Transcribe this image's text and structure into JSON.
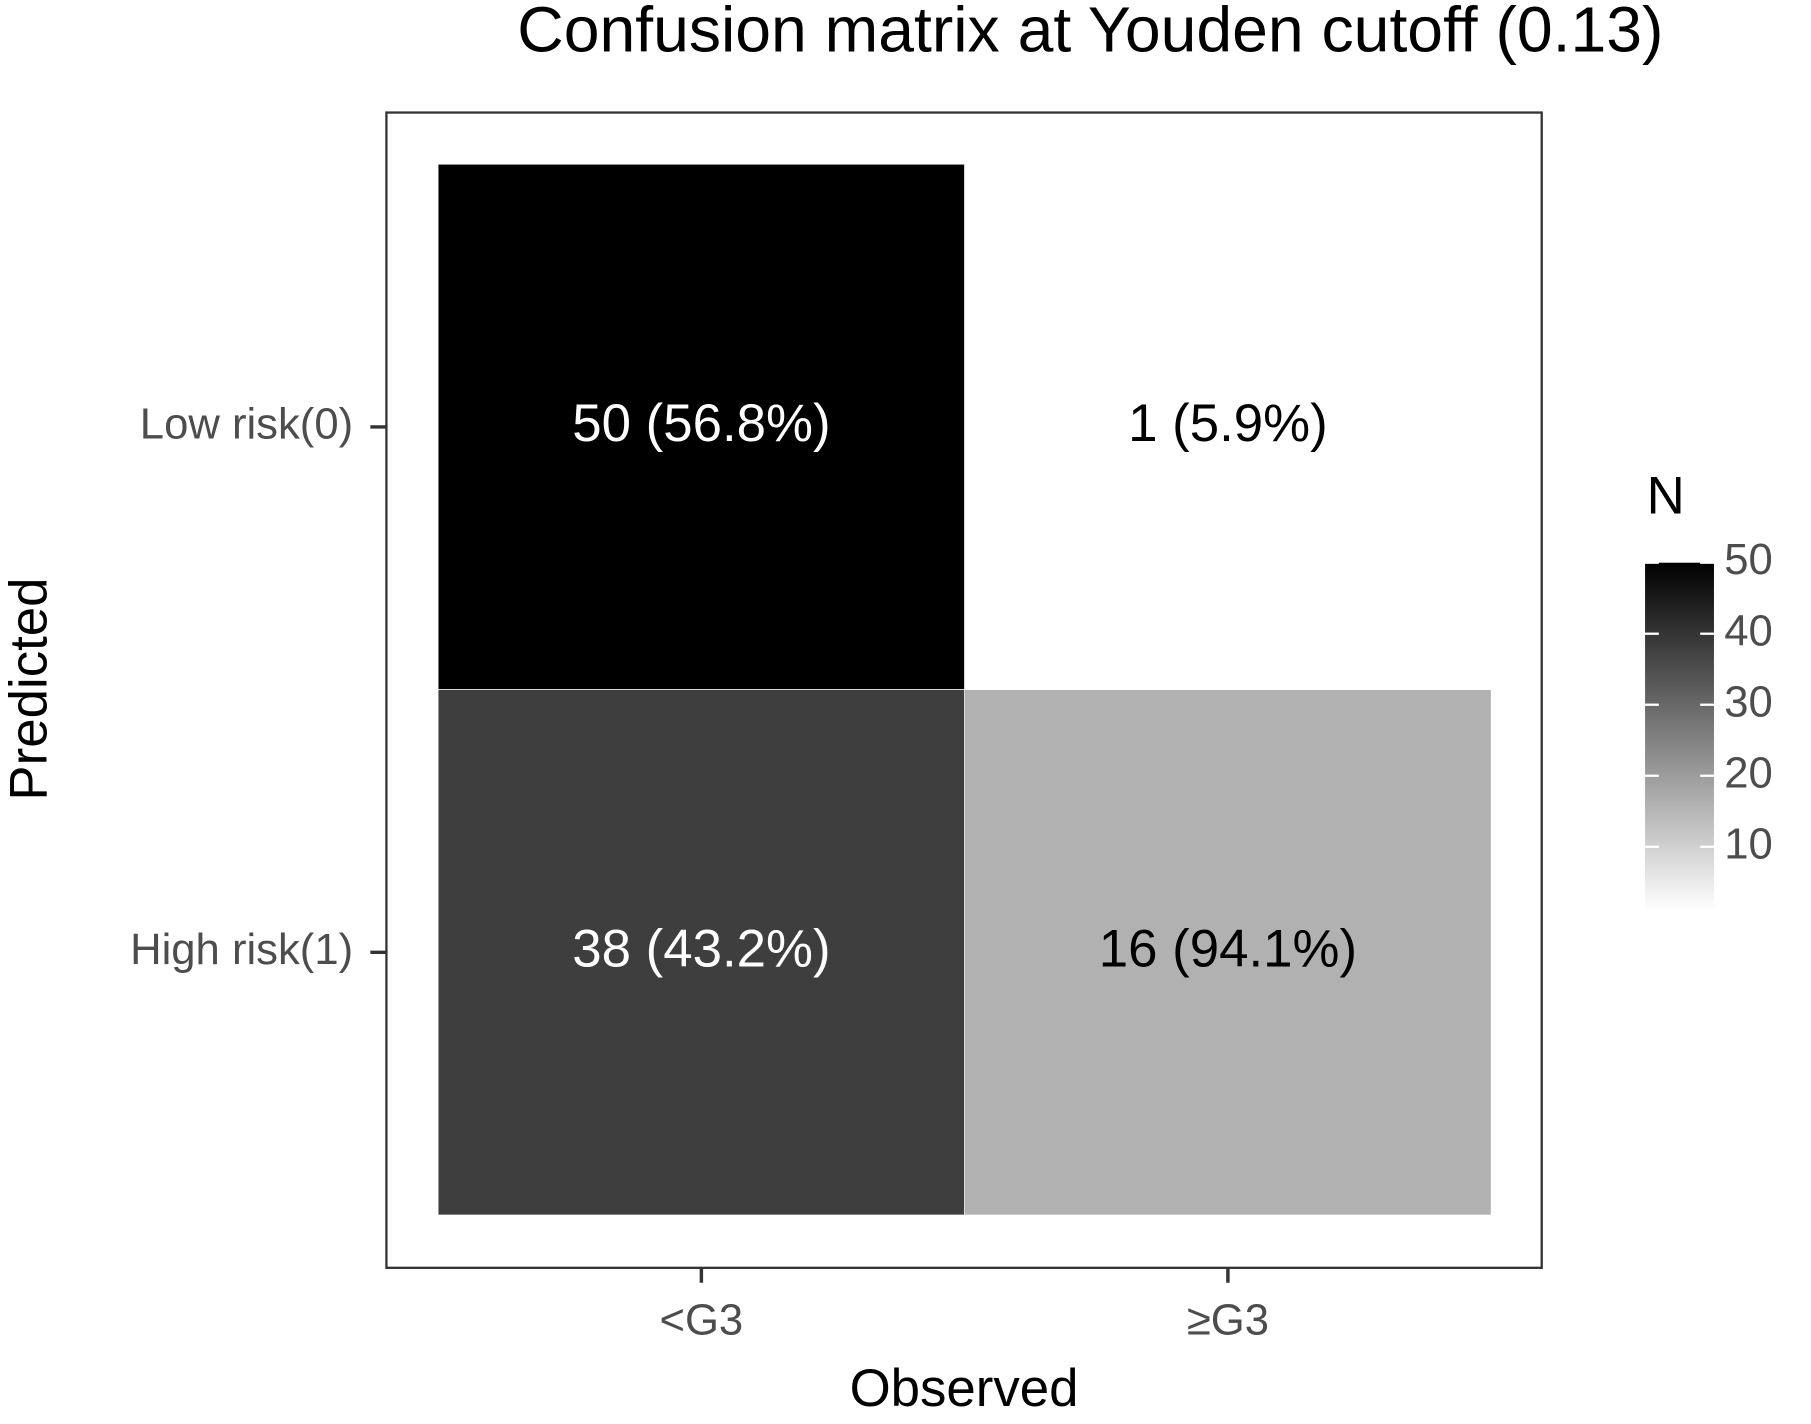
{
  "chart_data": {
    "type": "heatmap",
    "title": "Confusion matrix at Youden cutoff (0.13)",
    "x_label": "Observed",
    "y_label": "Predicted",
    "x_categories": [
      "<G3",
      "≥G3"
    ],
    "y_categories": [
      "Low risk(0)",
      "High risk(1)"
    ],
    "values": [
      [
        50,
        1
      ],
      [
        38,
        16
      ]
    ],
    "value_labels": [
      [
        "50 (56.8%)",
        "1 (5.9%)"
      ],
      [
        "38 (43.2%)",
        "16 (94.1%)"
      ]
    ],
    "legend_title": "N",
    "clim": [
      1,
      50
    ],
    "cticks": [
      10,
      20,
      30,
      40,
      50
    ],
    "low_color": "#ffffff",
    "high_color": "#000000",
    "legend_position": "right"
  }
}
